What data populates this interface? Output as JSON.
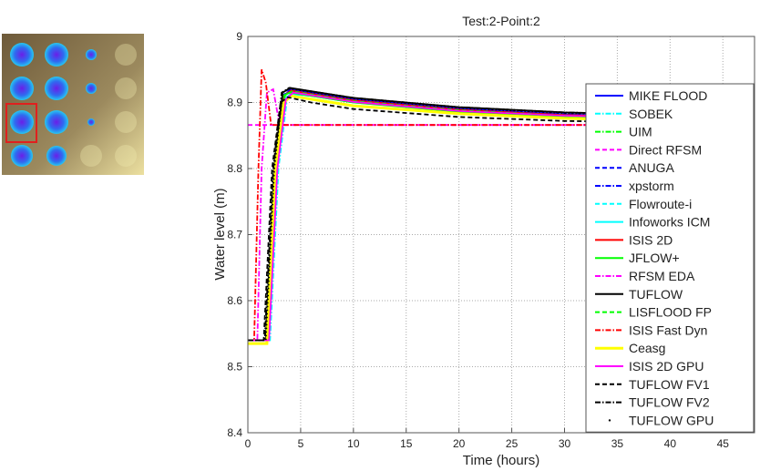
{
  "thumbnail": {
    "grid_rows": 4,
    "grid_cols": 4,
    "highlighted_cell": {
      "row": 3,
      "col": 1
    },
    "highlight_color": "#e0201e",
    "background_color": "#9c8a5e",
    "spot_colors": [
      "#6a1ee8",
      "#2f6bf0",
      "#27c8f0"
    ]
  },
  "chart_data": {
    "type": "line",
    "title": "Test:2-Point:2",
    "xlabel": "Time (hours)",
    "ylabel": "Water level (m)",
    "xlim": [
      0,
      48
    ],
    "ylim": [
      8.4,
      9
    ],
    "xticks": [
      "0",
      "5",
      "10",
      "15",
      "20",
      "25",
      "30",
      "35",
      "40",
      "45"
    ],
    "yticks": [
      "8.4",
      "8.5",
      "8.6",
      "8.7",
      "8.8",
      "8.9",
      "9"
    ],
    "grid": true,
    "legend_position": "right",
    "series": [
      {
        "name": "MIKE FLOOD",
        "color": "#0000ff",
        "style": "solid",
        "x": [
          0,
          1.8,
          2.6,
          3.4,
          4.1,
          6,
          10,
          20,
          30,
          48
        ],
        "y": [
          8.54,
          8.54,
          8.8,
          8.91,
          8.92,
          8.915,
          8.905,
          8.89,
          8.882,
          8.876
        ]
      },
      {
        "name": "SOBEK",
        "color": "#00ffff",
        "style": "dashdot",
        "x": [
          0,
          2.1,
          2.9,
          3.7,
          4.4,
          6,
          10,
          20,
          30,
          48
        ],
        "y": [
          8.54,
          8.54,
          8.8,
          8.905,
          8.912,
          8.91,
          8.9,
          8.887,
          8.88,
          8.874
        ]
      },
      {
        "name": "UIM",
        "color": "#00ff00",
        "style": "dashdot",
        "x": [
          0,
          1.8,
          2.6,
          3.4,
          4.1,
          6,
          10,
          20,
          30,
          48
        ],
        "y": [
          8.54,
          8.54,
          8.8,
          8.91,
          8.918,
          8.913,
          8.903,
          8.889,
          8.881,
          8.875
        ]
      },
      {
        "name": "Direct RFSM",
        "color": "#ff00ff",
        "style": "dashed",
        "x": [
          0,
          48
        ],
        "y": [
          8.866,
          8.866
        ]
      },
      {
        "name": "ANUGA",
        "color": "#0000ff",
        "style": "dashed",
        "x": [
          0,
          1.7,
          2.5,
          3.3,
          4,
          6,
          10,
          20,
          30,
          48
        ],
        "y": [
          8.54,
          8.54,
          8.8,
          8.91,
          8.92,
          8.915,
          8.905,
          8.891,
          8.883,
          8.877
        ]
      },
      {
        "name": "xpstorm",
        "color": "#0000ff",
        "style": "dashdot",
        "x": [
          0,
          1.8,
          2.6,
          3.4,
          4.1,
          6,
          10,
          20,
          30,
          48
        ],
        "y": [
          8.54,
          8.54,
          8.8,
          8.91,
          8.918,
          8.914,
          8.904,
          8.89,
          8.882,
          8.876
        ]
      },
      {
        "name": "Flowroute-i",
        "color": "#00ffff",
        "style": "dashed",
        "x": [
          0,
          1.9,
          2.7,
          3.5,
          4.2,
          6,
          10,
          20,
          30,
          48
        ],
        "y": [
          8.54,
          8.54,
          8.8,
          8.905,
          8.915,
          8.912,
          8.902,
          8.888,
          8.881,
          8.875
        ]
      },
      {
        "name": "Infoworks ICM",
        "color": "#00ffff",
        "style": "solid",
        "x": [
          0,
          1.8,
          2.6,
          3.4,
          4.1,
          6,
          10,
          20,
          30,
          48
        ],
        "y": [
          8.54,
          8.54,
          8.8,
          8.905,
          8.913,
          8.91,
          8.9,
          8.887,
          8.88,
          8.874
        ]
      },
      {
        "name": "ISIS 2D",
        "color": "#ff0000",
        "style": "solid",
        "x": [
          0,
          1.8,
          2.6,
          3.4,
          4.1,
          6,
          10,
          20,
          30,
          48
        ],
        "y": [
          8.54,
          8.54,
          8.8,
          8.91,
          8.918,
          8.913,
          8.903,
          8.889,
          8.881,
          8.875
        ]
      },
      {
        "name": "JFLOW+",
        "color": "#00ff00",
        "style": "solid",
        "x": [
          0,
          1.7,
          2.5,
          3.3,
          4,
          6,
          10,
          20,
          30,
          48
        ],
        "y": [
          8.54,
          8.54,
          8.8,
          8.91,
          8.915,
          8.91,
          8.9,
          8.886,
          8.879,
          8.873
        ]
      },
      {
        "name": "RFSM EDA",
        "color": "#ff00ff",
        "style": "dashdot",
        "x": [
          0,
          0.9,
          1.3,
          1.8,
          2.4,
          3,
          48
        ],
        "y": [
          8.54,
          8.54,
          8.8,
          8.915,
          8.92,
          8.866,
          8.866
        ]
      },
      {
        "name": "TUFLOW",
        "color": "#000000",
        "style": "solid",
        "x": [
          0,
          1.7,
          2.5,
          3.3,
          4,
          6,
          10,
          20,
          30,
          48
        ],
        "y": [
          8.54,
          8.54,
          8.8,
          8.915,
          8.922,
          8.917,
          8.907,
          8.893,
          8.885,
          8.878
        ]
      },
      {
        "name": "LISFLOOD FP",
        "color": "#00ff00",
        "style": "dashed",
        "x": [
          0,
          1.9,
          2.7,
          3.5,
          4.2,
          6,
          10,
          20,
          30,
          48
        ],
        "y": [
          8.54,
          8.54,
          8.8,
          8.91,
          8.917,
          8.912,
          8.902,
          8.888,
          8.88,
          8.874
        ]
      },
      {
        "name": "ISIS Fast Dyn",
        "color": "#ff0000",
        "style": "dashdot",
        "x": [
          0,
          0.6,
          1.0,
          1.3,
          1.7,
          2.2,
          48
        ],
        "y": [
          8.54,
          8.54,
          8.8,
          8.95,
          8.93,
          8.866,
          8.866
        ]
      },
      {
        "name": "Ceasg",
        "color": "#ffff00",
        "style": "solid",
        "x": [
          0,
          1.8,
          2.6,
          3.4,
          4.1,
          6,
          10,
          20,
          30,
          48
        ],
        "y": [
          8.535,
          8.535,
          8.8,
          8.9,
          8.91,
          8.905,
          8.895,
          8.883,
          8.876,
          8.87
        ]
      },
      {
        "name": "ISIS 2D GPU",
        "color": "#ff00ff",
        "style": "solid",
        "x": [
          0,
          2.0,
          2.8,
          3.6,
          4.3,
          6,
          10,
          20,
          30,
          48
        ],
        "y": [
          8.54,
          8.54,
          8.8,
          8.905,
          8.915,
          8.911,
          8.901,
          8.887,
          8.88,
          8.874
        ]
      },
      {
        "name": "TUFLOW FV1",
        "color": "#000000",
        "style": "dashed",
        "x": [
          0,
          1.5,
          2.3,
          3.1,
          3.8,
          6,
          10,
          20,
          30,
          48
        ],
        "y": [
          8.54,
          8.54,
          8.8,
          8.9,
          8.908,
          8.9,
          8.89,
          8.878,
          8.872,
          8.868
        ]
      },
      {
        "name": "TUFLOW FV2",
        "color": "#000000",
        "style": "dashdot",
        "x": [
          0,
          1.6,
          2.4,
          3.2,
          3.9,
          6,
          10,
          20,
          30,
          48
        ],
        "y": [
          8.54,
          8.54,
          8.8,
          8.915,
          8.922,
          8.917,
          8.907,
          8.893,
          8.885,
          8.879
        ]
      },
      {
        "name": "TUFLOW GPU",
        "color": "#000000",
        "style": "dotted",
        "x": [
          0,
          1.7,
          2.5,
          3.3,
          4,
          6,
          10,
          20,
          30,
          48
        ],
        "y": [
          8.54,
          8.54,
          8.8,
          8.915,
          8.921,
          8.916,
          8.906,
          8.892,
          8.884,
          8.878
        ]
      }
    ]
  }
}
